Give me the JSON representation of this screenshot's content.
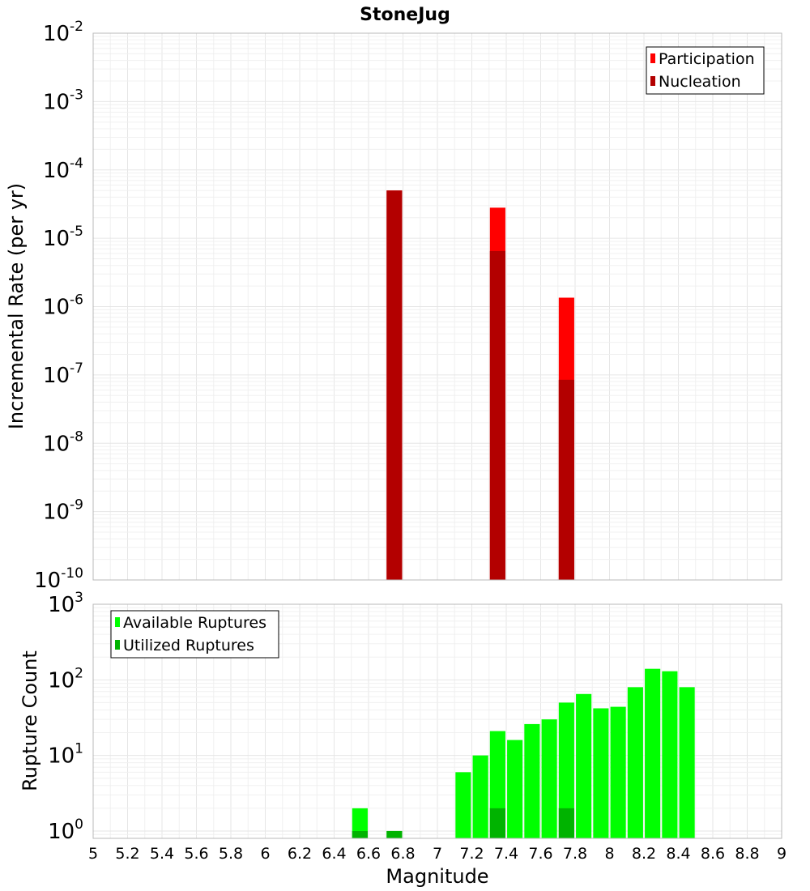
{
  "chart_data": [
    {
      "type": "bar",
      "title": "StoneJug",
      "ylabel": "Incremental Rate (per yr)",
      "xlabel": "",
      "yscale": "log",
      "ylim": [
        1e-10,
        0.01
      ],
      "xlim": [
        5,
        9
      ],
      "grid": true,
      "legend_position": "top-right",
      "y_tick_labels": [
        {
          "base": "10",
          "exp": "-2"
        },
        {
          "base": "10",
          "exp": "-3"
        },
        {
          "base": "10",
          "exp": "-4"
        },
        {
          "base": "10",
          "exp": "-5"
        },
        {
          "base": "10",
          "exp": "-6"
        },
        {
          "base": "10",
          "exp": "-7"
        },
        {
          "base": "10",
          "exp": "-8"
        },
        {
          "base": "10",
          "exp": "-9"
        },
        {
          "base": "10",
          "exp": "-10"
        }
      ],
      "series": [
        {
          "name": "Participation",
          "color": "#ff0000",
          "x": [
            6.75,
            7.35,
            7.75
          ],
          "values": [
            5e-05,
            2.8e-05,
            1.35e-06
          ]
        },
        {
          "name": "Nucleation",
          "color": "#b30000",
          "x": [
            6.75,
            7.35,
            7.75
          ],
          "values": [
            5e-05,
            6.5e-06,
            8.5e-08
          ]
        }
      ]
    },
    {
      "type": "bar",
      "title": "",
      "ylabel": "Rupture Count",
      "xlabel": "Magnitude",
      "yscale": "log",
      "ylim": [
        0.8,
        1000
      ],
      "xlim": [
        5,
        9
      ],
      "grid": true,
      "legend_position": "top-left",
      "x_tick_labels": [
        "5",
        "5.2",
        "5.4",
        "5.6",
        "5.8",
        "6",
        "6.2",
        "6.4",
        "6.6",
        "6.8",
        "7",
        "7.2",
        "7.4",
        "7.6",
        "7.8",
        "8",
        "8.2",
        "8.4",
        "8.6",
        "8.8",
        "9"
      ],
      "y_tick_labels": [
        {
          "base": "10",
          "exp": "3"
        },
        {
          "base": "10",
          "exp": "2"
        },
        {
          "base": "10",
          "exp": "1"
        },
        {
          "base": "10",
          "exp": "0"
        }
      ],
      "series": [
        {
          "name": "Available Ruptures",
          "color": "#00ff00",
          "x": [
            6.55,
            6.75,
            7.15,
            7.25,
            7.35,
            7.45,
            7.55,
            7.65,
            7.75,
            7.85,
            7.95,
            8.05,
            8.15,
            8.25,
            8.35,
            8.45
          ],
          "values": [
            2,
            1,
            6,
            10,
            21,
            16,
            26,
            30,
            50,
            65,
            42,
            44,
            80,
            140,
            130,
            80
          ]
        },
        {
          "name": "Utilized Ruptures",
          "color": "#00b300",
          "x": [
            6.55,
            6.75,
            7.35,
            7.75
          ],
          "values": [
            1,
            1,
            2,
            2
          ]
        }
      ]
    }
  ]
}
